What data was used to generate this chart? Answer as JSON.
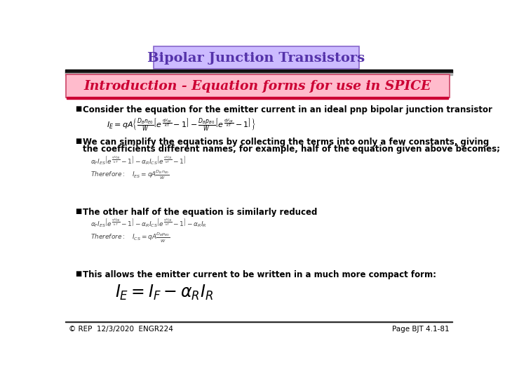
{
  "title": "Bipolar Junction Transistors",
  "subtitle": "Introduction - Equation forms for use in SPICE",
  "title_box_color": "#ccbbff",
  "subtitle_box_color": "#ffbbcc",
  "title_text_color": "#5533aa",
  "subtitle_text_color": "#cc0033",
  "bg_color": "#ffffff",
  "footer_left": "© REP  12/3/2020  ENGR224",
  "footer_right": "Page BJT 4.1-81",
  "bullet1": "Consider the equation for the emitter current in an ideal pnp bipolar junction transistor",
  "bullet2_line1": "We can simplify the equations by collecting the terms into only a few constants, giving",
  "bullet2_line2": "the coefficients different names, for example, half of the equation given above becomes;",
  "bullet3": "The other half of the equation is similarly reduced",
  "bullet4": "This allows the emitter current to be written in a much more compact form:"
}
